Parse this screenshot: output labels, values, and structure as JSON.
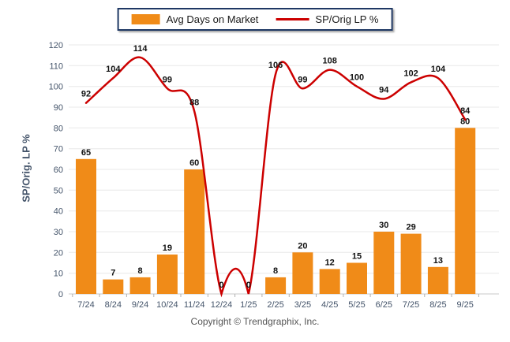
{
  "legend": {
    "bar_label": "Avg Days on Market",
    "line_label": "SP/Orig LP %"
  },
  "footer": {
    "copyright": "Copyright © Trendgraphix, Inc."
  },
  "colors": {
    "bar": "#F08B18",
    "line": "#CC0000",
    "legend_border": "#1F3864",
    "gridline": "#E8E8E8",
    "axis_line": "#C9C9C9",
    "tick_mark": "#B0B0B0",
    "x_tick_label": "#44546A",
    "y_tick_label": "#44546A",
    "data_label": "#111111"
  },
  "chart_data": {
    "type": "bar+line",
    "title": "",
    "xlabel": "",
    "ylabel": "SP/Orig. LP %",
    "ylim": [
      0,
      120
    ],
    "ytick_step": 10,
    "yticks": [
      0,
      10,
      20,
      30,
      40,
      50,
      60,
      70,
      80,
      90,
      100,
      110,
      120
    ],
    "grid": true,
    "legend_position": "top-center",
    "categories": [
      "7/24",
      "8/24",
      "9/24",
      "10/24",
      "11/24",
      "12/24",
      "1/25",
      "2/25",
      "3/25",
      "4/25",
      "5/25",
      "6/25",
      "7/25",
      "8/25",
      "9/25"
    ],
    "series": [
      {
        "name": "Avg Days on Market",
        "type": "bar",
        "color": "#F08B18",
        "values": [
          65,
          7,
          8,
          19,
          60,
          0,
          0,
          8,
          20,
          12,
          15,
          30,
          29,
          13,
          80
        ]
      },
      {
        "name": "SP/Orig LP %",
        "type": "line",
        "color": "#CC0000",
        "values": [
          92,
          104,
          114,
          99,
          88,
          0,
          0,
          106,
          99,
          108,
          100,
          94,
          102,
          104,
          84
        ]
      }
    ]
  }
}
